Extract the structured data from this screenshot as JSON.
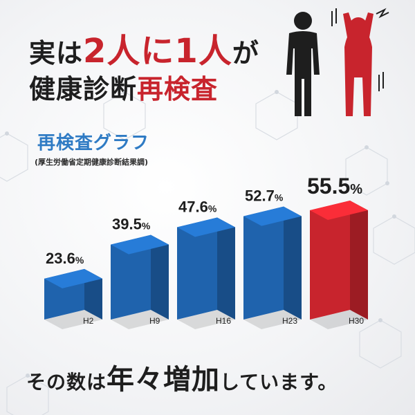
{
  "headline": {
    "line1_a": "実は",
    "line1_highlight": "2人に1人",
    "line1_b": "が",
    "line2_a": "健康診断",
    "line2_highlight": "再検査"
  },
  "graph_title": "再検査グラフ",
  "graph_source": "(厚生労働省定期健康診断結果調)",
  "footer": {
    "part_a": "その数は",
    "emphasis": "年々増加",
    "part_b": "しています。"
  },
  "colors": {
    "blue": "#1f63ad",
    "red": "#c8242d",
    "accent_blue": "#2f7bc4"
  },
  "chart_data": {
    "type": "bar",
    "categories": [
      "H2",
      "H9",
      "H16",
      "H23",
      "H30"
    ],
    "values": [
      23.6,
      39.5,
      47.6,
      52.7,
      55.5
    ],
    "value_suffix": "%",
    "highlight_index": 4,
    "ylim": [
      0,
      60
    ]
  }
}
